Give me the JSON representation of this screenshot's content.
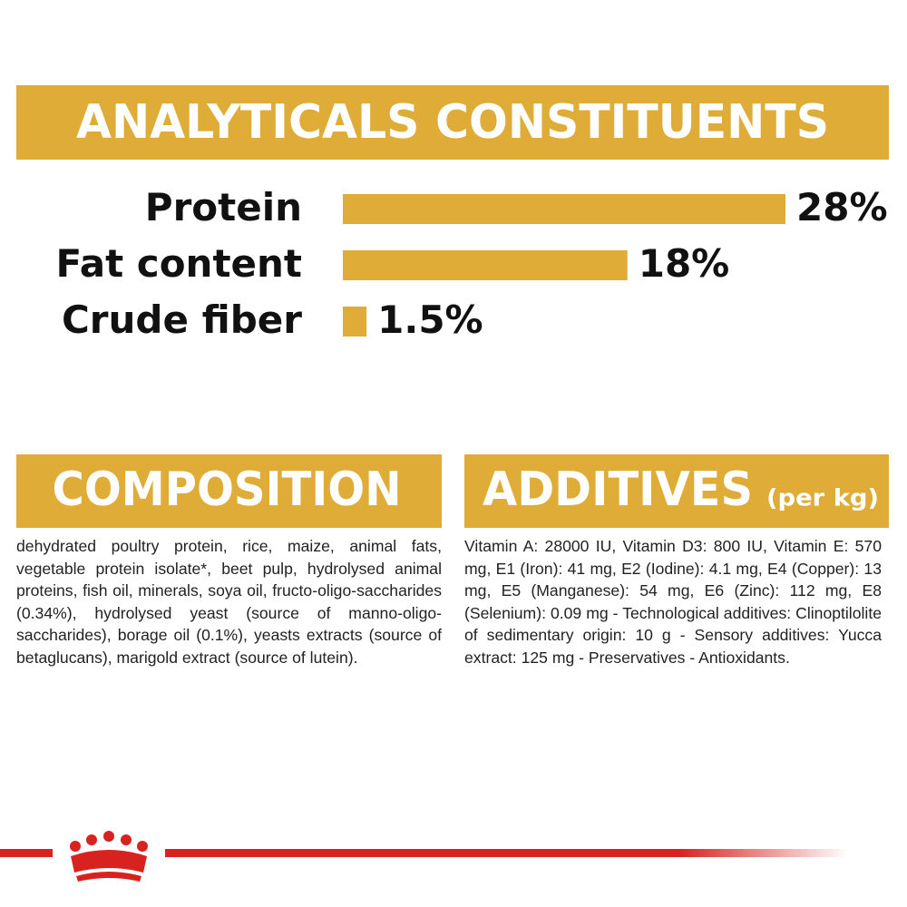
{
  "chart_data": {
    "type": "bar",
    "orientation": "horizontal",
    "title": "ANALYTICALS CONSTITUENTS",
    "categories": [
      "Protein",
      "Fat content",
      "Crude fiber"
    ],
    "values": [
      28,
      18,
      1.5
    ],
    "value_labels": [
      "28%",
      "18%",
      "1.5%"
    ],
    "color": "#dfad37"
  },
  "composition": {
    "title": "COMPOSITION",
    "text": "dehydrated poultry protein, rice, maize, animal fats, vegetable protein isolate*, beet pulp, hydrolysed animal proteins, fish oil, minerals, soya oil, fructo-oligo-saccharides (0.34%), hydrolysed yeast (source of manno-oligo-saccharides), borage oil (0.1%), yeasts extracts (source of betaglucans), marigold extract (source of lutein)."
  },
  "additives": {
    "title": "ADDITIVES",
    "unit": "(per kg)",
    "text": "Vitamin A: 28000 IU, Vitamin D3: 800 IU, Vitamin E: 570 mg, E1 (Iron): 41 mg, E2 (Iodine): 4.1 mg, E4 (Copper): 13 mg, E5 (Manganese): 54 mg, E6 (Zinc): 112 mg, E8 (Selenium): 0.09 mg - Technological additives: Clinoptilolite of sedimentary origin: 10 g - Sensory additives: Yucca extract: 125 mg - Preservatives - Antioxidants."
  }
}
